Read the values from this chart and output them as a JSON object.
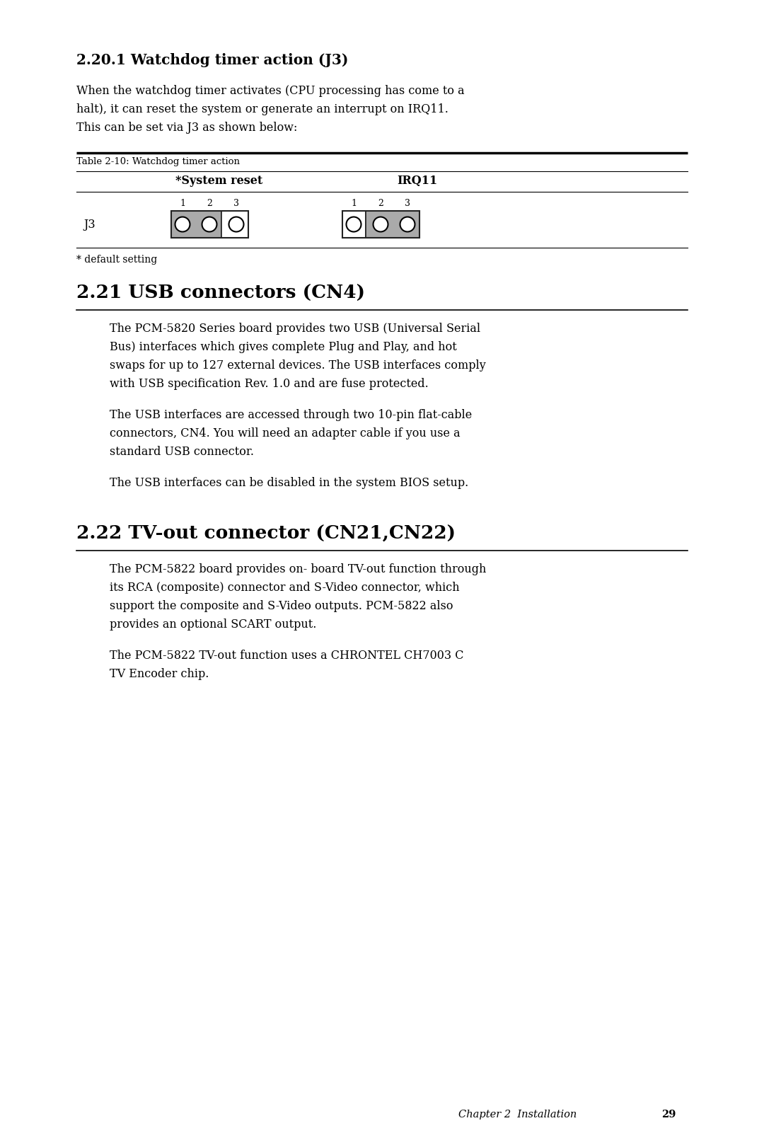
{
  "bg_color": "#ffffff",
  "text_color": "#000000",
  "section_2201_title": "2.20.1 Watchdog timer action (J3)",
  "section_2201_body_line1": "When the watchdog timer activates (CPU processing has come to a",
  "section_2201_body_line2": "halt), it can reset the system or generate an interrupt on IRQ11.",
  "section_2201_body_line3": "This can be set via J3 as shown below:",
  "table_caption": "Table 2-10: Watchdog timer action",
  "col1_header": "*System reset",
  "col2_header": "IRQ11",
  "row_label": "J3",
  "footer_note": "* default setting",
  "section_221_title": "2.21 USB connectors (CN4)",
  "usb_para1_line1": "The PCM-5820 Series board provides two USB (Universal Serial",
  "usb_para1_line2": "Bus) interfaces which gives complete Plug and Play, and hot",
  "usb_para1_line3": "swaps for up to 127 external devices. The USB interfaces comply",
  "usb_para1_line4": "with USB specification Rev. 1.0 and are fuse protected.",
  "usb_para2_line1": "The USB interfaces are accessed through two 10-pin flat-cable",
  "usb_para2_line2": "connectors, CN4. You will need an adapter cable if you use a",
  "usb_para2_line3": "standard USB connector.",
  "usb_para3": "The USB interfaces can be disabled in the system BIOS setup.",
  "section_222_title": "2.22 TV-out connector (CN21,CN22)",
  "tv_para1_line1": "The PCM-5822 board provides on- board TV-out function through",
  "tv_para1_line2": "its RCA (composite) connector and S-Video connector, which",
  "tv_para1_line3": "support the composite and S-Video outputs. PCM-5822 also",
  "tv_para1_line4": "provides an optional SCART output.",
  "tv_para2_line1": "The PCM-5822 TV-out function uses a CHRONTEL CH7003 C",
  "tv_para2_line2": "TV Encoder chip.",
  "footer_text": "Chapter 2  Installation",
  "footer_page": "29",
  "connector_gray": "#aaaaaa",
  "connector_border": "#222222",
  "line_color": "#000000"
}
